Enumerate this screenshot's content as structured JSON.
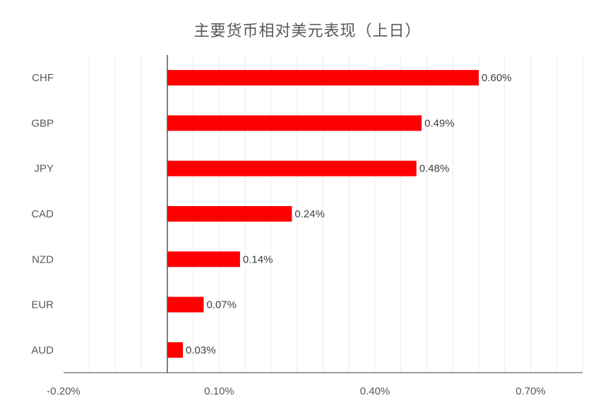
{
  "chart_data": {
    "type": "bar",
    "orientation": "horizontal",
    "title": "主要货币相对美元表现（上日）",
    "categories": [
      "CHF",
      "GBP",
      "JPY",
      "CAD",
      "NZD",
      "EUR",
      "AUD"
    ],
    "values": [
      0.6,
      0.49,
      0.48,
      0.24,
      0.14,
      0.07,
      0.03
    ],
    "value_labels": [
      "0.60%",
      "0.49%",
      "0.48%",
      "0.24%",
      "0.14%",
      "0.07%",
      "0.03%"
    ],
    "xlim": [
      -0.2,
      0.8
    ],
    "x_ticks": [
      -0.2,
      0.1,
      0.4,
      0.7
    ],
    "x_tick_labels": [
      "-0.20%",
      "0.10%",
      "0.40%",
      "0.70%"
    ],
    "grid": "vertical",
    "legend": "none",
    "bar_color": "#ff0000"
  }
}
